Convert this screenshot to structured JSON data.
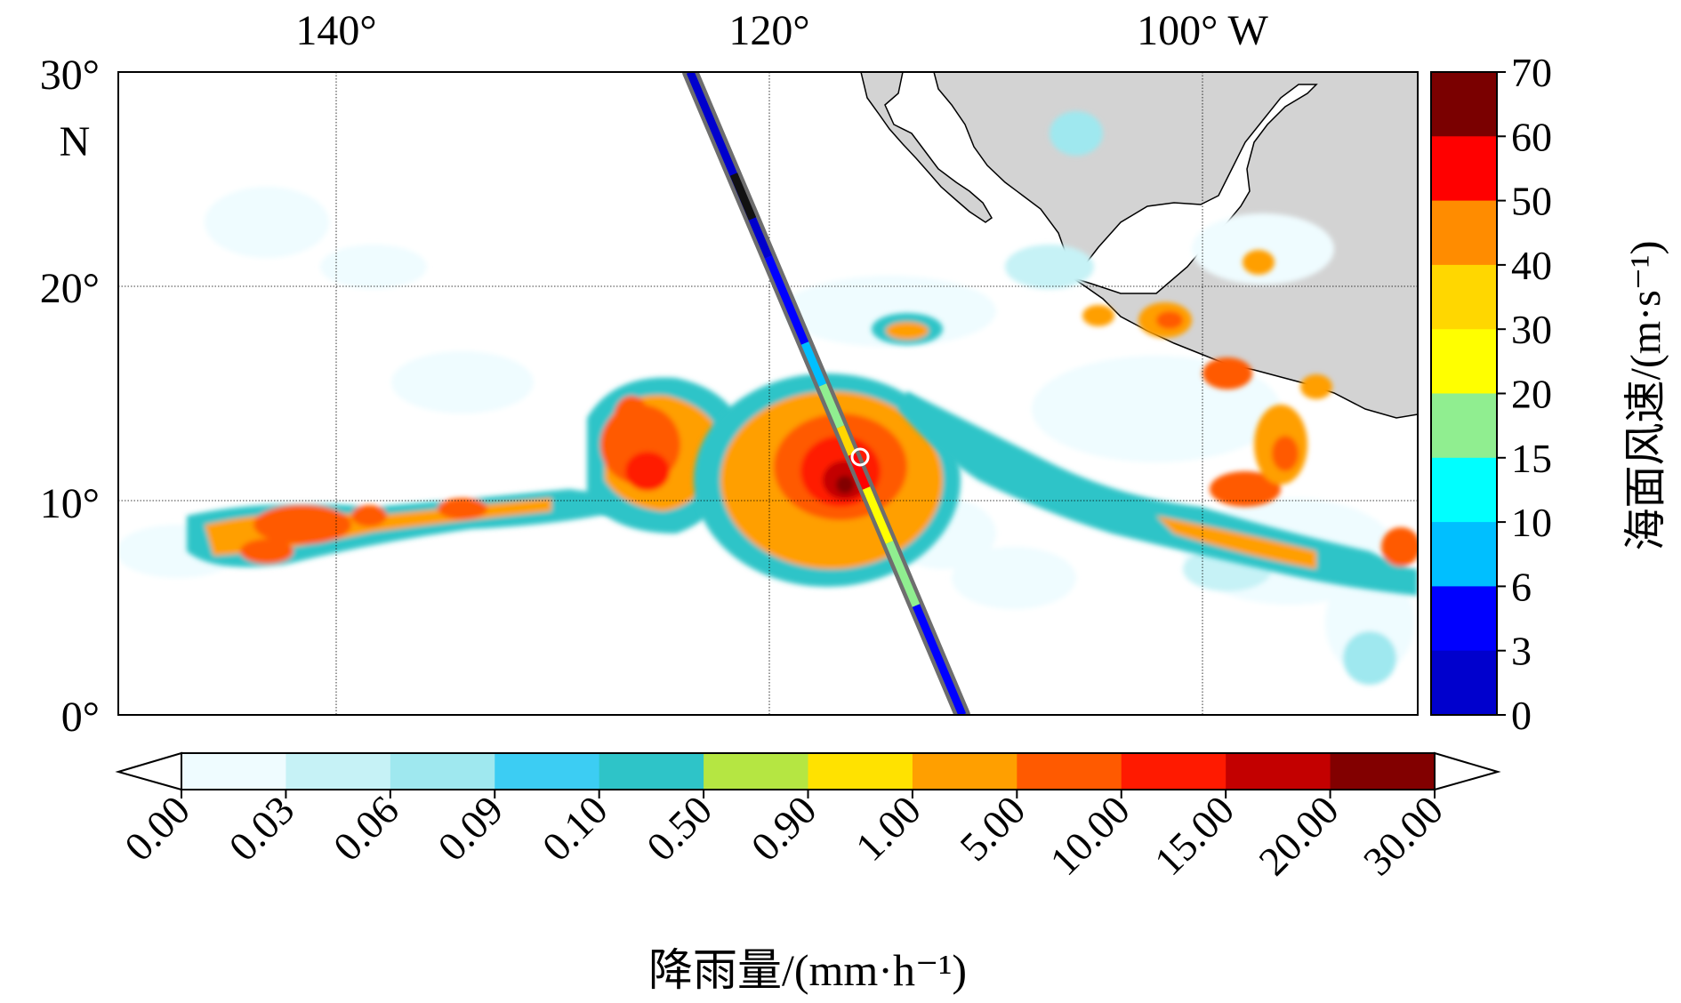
{
  "map": {
    "top_axis_labels": [
      "140°",
      "120°",
      "100° W"
    ],
    "left_axis_labels": [
      "30°",
      "N",
      "20°",
      "10°",
      "0°"
    ],
    "land_color": "#d3d3d3",
    "track": {
      "description_color": "#6e6e6e",
      "start": {
        "lon": -124,
        "lat": 30
      },
      "end": {
        "lon": -111.2,
        "lat": 0
      }
    },
    "storm_center": {
      "lon": -115.8,
      "lat": 12
    }
  },
  "wind_colorbar": {
    "label": "海面风速/(m·s⁻¹)",
    "ticks": [
      "70",
      "60",
      "50",
      "40",
      "30",
      "20",
      "15",
      "10",
      "6",
      "3",
      "0"
    ],
    "colors": [
      "#7a0000",
      "#ff0000",
      "#ff8c00",
      "#ffd700",
      "#ffff00",
      "#90ee90",
      "#00ffff",
      "#00bfff",
      "#0000ff",
      "#0000cd"
    ]
  },
  "rain_colorbar": {
    "label": "降雨量/(mm·h⁻¹)",
    "ticks": [
      "0.00",
      "0.03",
      "0.06",
      "0.09",
      "0.10",
      "0.50",
      "0.90",
      "1.00",
      "5.00",
      "10.00",
      "15.00",
      "20.00",
      "30.00"
    ],
    "colors": [
      "#effcff",
      "#c6f2f6",
      "#9fe8ef",
      "#3ccdf3",
      "#2ec4c8",
      "#b5e642",
      "#ffe200",
      "#ff9f00",
      "#ff5a00",
      "#ff1a00",
      "#c30000",
      "#820000"
    ]
  }
}
